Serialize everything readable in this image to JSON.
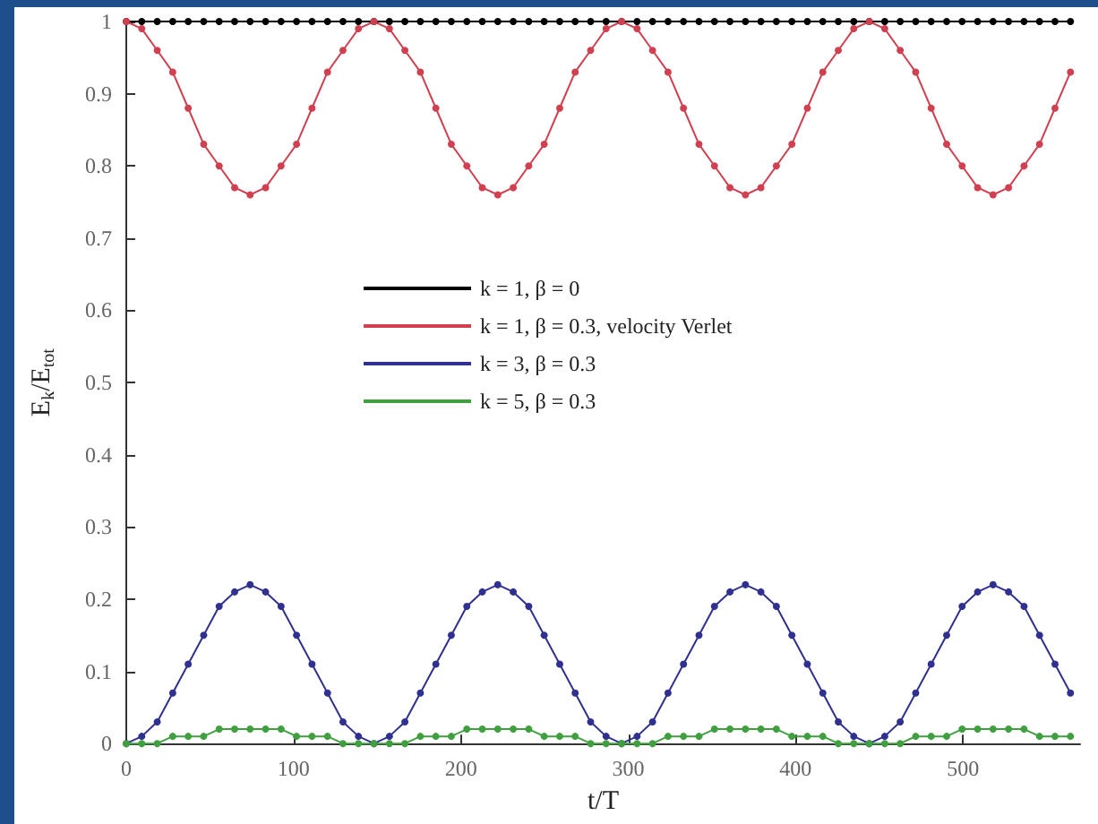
{
  "chart_data": {
    "type": "line",
    "xlabel": "t/T",
    "ylabel": "E$_{k}$/E$_{tot}$",
    "x": [
      0,
      9.25,
      18.5,
      27.75,
      37,
      46.25,
      55.5,
      64.75,
      74,
      83.25,
      92.5,
      101.75,
      111,
      120.25,
      129.5,
      138.75,
      148,
      157.25,
      166.5,
      175.75,
      185,
      194.25,
      203.5,
      212.75,
      222,
      231.25,
      240.5,
      249.75,
      259,
      268.25,
      277.5,
      286.75,
      296,
      305.25,
      314.5,
      323.75,
      333,
      342.25,
      351.5,
      360.75,
      370,
      379.25,
      388.5,
      397.75,
      407,
      416.25,
      425.5,
      434.75,
      444,
      453.25,
      462.5,
      471.75,
      481,
      490.25,
      499.5,
      508.75,
      518,
      527.25,
      536.5,
      545.75,
      555,
      564.25
    ],
    "series": [
      {
        "name": "k = 1, β = 0",
        "color": "#000000",
        "values": [
          1,
          1,
          1,
          1,
          1,
          1,
          1,
          1,
          1,
          1,
          1,
          1,
          1,
          1,
          1,
          1,
          1,
          1,
          1,
          1,
          1,
          1,
          1,
          1,
          1,
          1,
          1,
          1,
          1,
          1,
          1,
          1,
          1,
          1,
          1,
          1,
          1,
          1,
          1,
          1,
          1,
          1,
          1,
          1,
          1,
          1,
          1,
          1,
          1,
          1,
          1,
          1,
          1,
          1,
          1,
          1,
          1,
          1,
          1,
          1,
          1,
          1
        ]
      },
      {
        "name": "k = 1, β = 0.3, velocity Verlet",
        "color": "#d04050",
        "values": [
          1,
          0.99,
          0.96,
          0.93,
          0.88,
          0.83,
          0.8,
          0.77,
          0.76,
          0.77,
          0.8,
          0.83,
          0.88,
          0.93,
          0.96,
          0.99,
          1,
          0.99,
          0.96,
          0.93,
          0.88,
          0.83,
          0.8,
          0.77,
          0.76,
          0.77,
          0.8,
          0.83,
          0.88,
          0.93,
          0.96,
          0.99,
          1,
          0.99,
          0.96,
          0.93,
          0.88,
          0.83,
          0.8,
          0.77,
          0.76,
          0.77,
          0.8,
          0.83,
          0.88,
          0.93,
          0.96,
          0.99,
          1,
          0.99,
          0.96,
          0.93,
          0.88,
          0.83,
          0.8,
          0.77,
          0.76,
          0.77,
          0.8,
          0.83,
          0.88,
          0.93
        ]
      },
      {
        "name": "k = 3, β = 0.3",
        "color": "#303090",
        "values": [
          0,
          0.01,
          0.03,
          0.07,
          0.11,
          0.15,
          0.19,
          0.21,
          0.22,
          0.21,
          0.19,
          0.15,
          0.11,
          0.07,
          0.03,
          0.01,
          0,
          0.01,
          0.03,
          0.07,
          0.11,
          0.15,
          0.19,
          0.21,
          0.22,
          0.21,
          0.19,
          0.15,
          0.11,
          0.07,
          0.03,
          0.01,
          0,
          0.01,
          0.03,
          0.07,
          0.11,
          0.15,
          0.19,
          0.21,
          0.22,
          0.21,
          0.19,
          0.15,
          0.11,
          0.07,
          0.03,
          0.01,
          0,
          0.01,
          0.03,
          0.07,
          0.11,
          0.15,
          0.19,
          0.21,
          0.22,
          0.21,
          0.19,
          0.15,
          0.11,
          0.07
        ]
      },
      {
        "name": "k = 5, β = 0.3",
        "color": "#40a040",
        "values": [
          0,
          0,
          0,
          0.01,
          0.01,
          0.01,
          0.02,
          0.02,
          0.02,
          0.02,
          0.02,
          0.01,
          0.01,
          0.01,
          0,
          0,
          0,
          0,
          0,
          0.01,
          0.01,
          0.01,
          0.02,
          0.02,
          0.02,
          0.02,
          0.02,
          0.01,
          0.01,
          0.01,
          0,
          0,
          0,
          0,
          0,
          0.01,
          0.01,
          0.01,
          0.02,
          0.02,
          0.02,
          0.02,
          0.02,
          0.01,
          0.01,
          0.01,
          0,
          0,
          0,
          0,
          0,
          0.01,
          0.01,
          0.01,
          0.02,
          0.02,
          0.02,
          0.02,
          0.02,
          0.01,
          0.01,
          0.01
        ]
      }
    ],
    "xlim": [
      0,
      570
    ],
    "xticks": [
      0,
      100,
      200,
      300,
      400,
      500
    ],
    "ylim": [
      0,
      1
    ],
    "yticks": [
      0,
      {
        "value": 0.1,
        "label": "0.1"
      },
      {
        "value": 0.2,
        "label": "0.2"
      },
      {
        "value": 0.3,
        "label": "0.3"
      },
      {
        "value": 0.4,
        "label": "0.4"
      },
      {
        "value": 0.5,
        "label": "0.5"
      },
      {
        "value": 0.6,
        "label": "0.6"
      },
      {
        "value": 0.7,
        "label": "0.7"
      },
      {
        "value": 0.8,
        "label": "0.8"
      },
      {
        "value": 0.9,
        "label": "0.9"
      },
      1
    ],
    "legend": "center",
    "marker": "circle",
    "grid": false,
    "line_style": "solid"
  }
}
